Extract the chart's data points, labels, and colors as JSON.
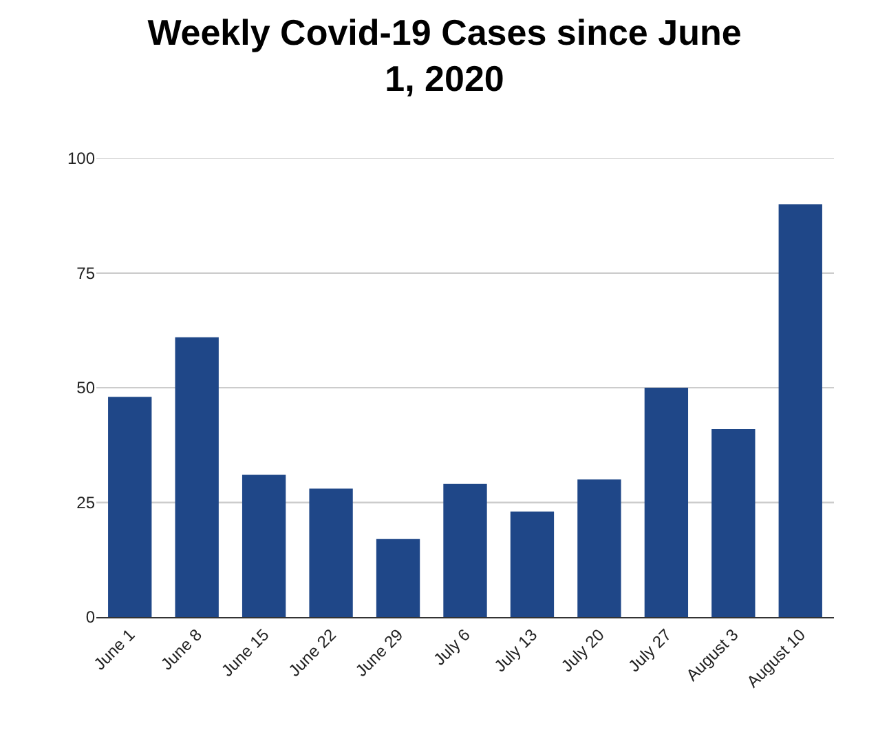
{
  "chart_data": {
    "type": "bar",
    "title": "Weekly Covid-19 Cases since June 1, 2020",
    "categories": [
      "June 1",
      "June 8",
      "June 15",
      "June 22",
      "June 29",
      "July 6",
      "July 13",
      "July 20",
      "July 27",
      "August 3",
      "August 10"
    ],
    "values": [
      48,
      61,
      31,
      28,
      17,
      29,
      23,
      30,
      50,
      41,
      90
    ],
    "color": "#1f4788",
    "ylim": [
      0,
      100
    ],
    "yticks": [
      0,
      25,
      50,
      75,
      100
    ],
    "grid": "y",
    "legend": false
  }
}
